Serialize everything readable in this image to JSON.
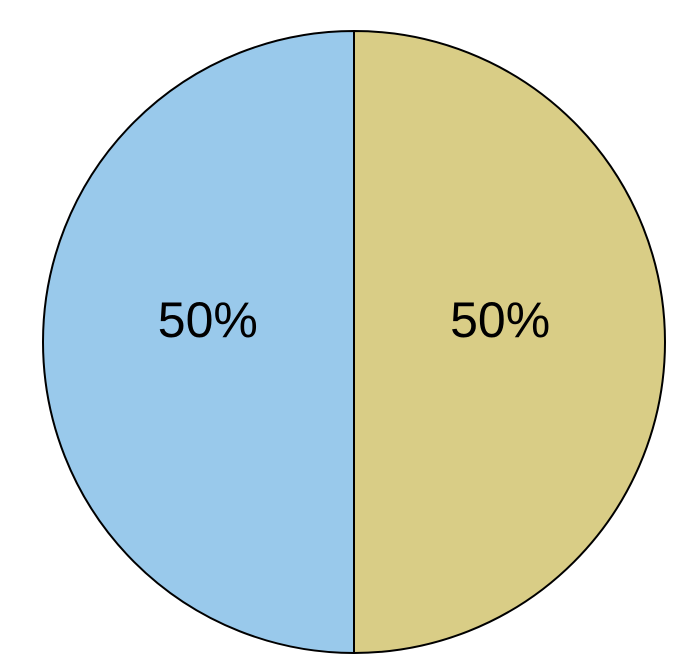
{
  "chart_data": {
    "type": "pie",
    "title": "",
    "start_angle_deg": 90,
    "direction": "counterclockwise",
    "slices": [
      {
        "value": 50,
        "label": "50%",
        "color": "#99c9eb"
      },
      {
        "value": 50,
        "label": "50%",
        "color": "#d9cd86"
      }
    ]
  }
}
